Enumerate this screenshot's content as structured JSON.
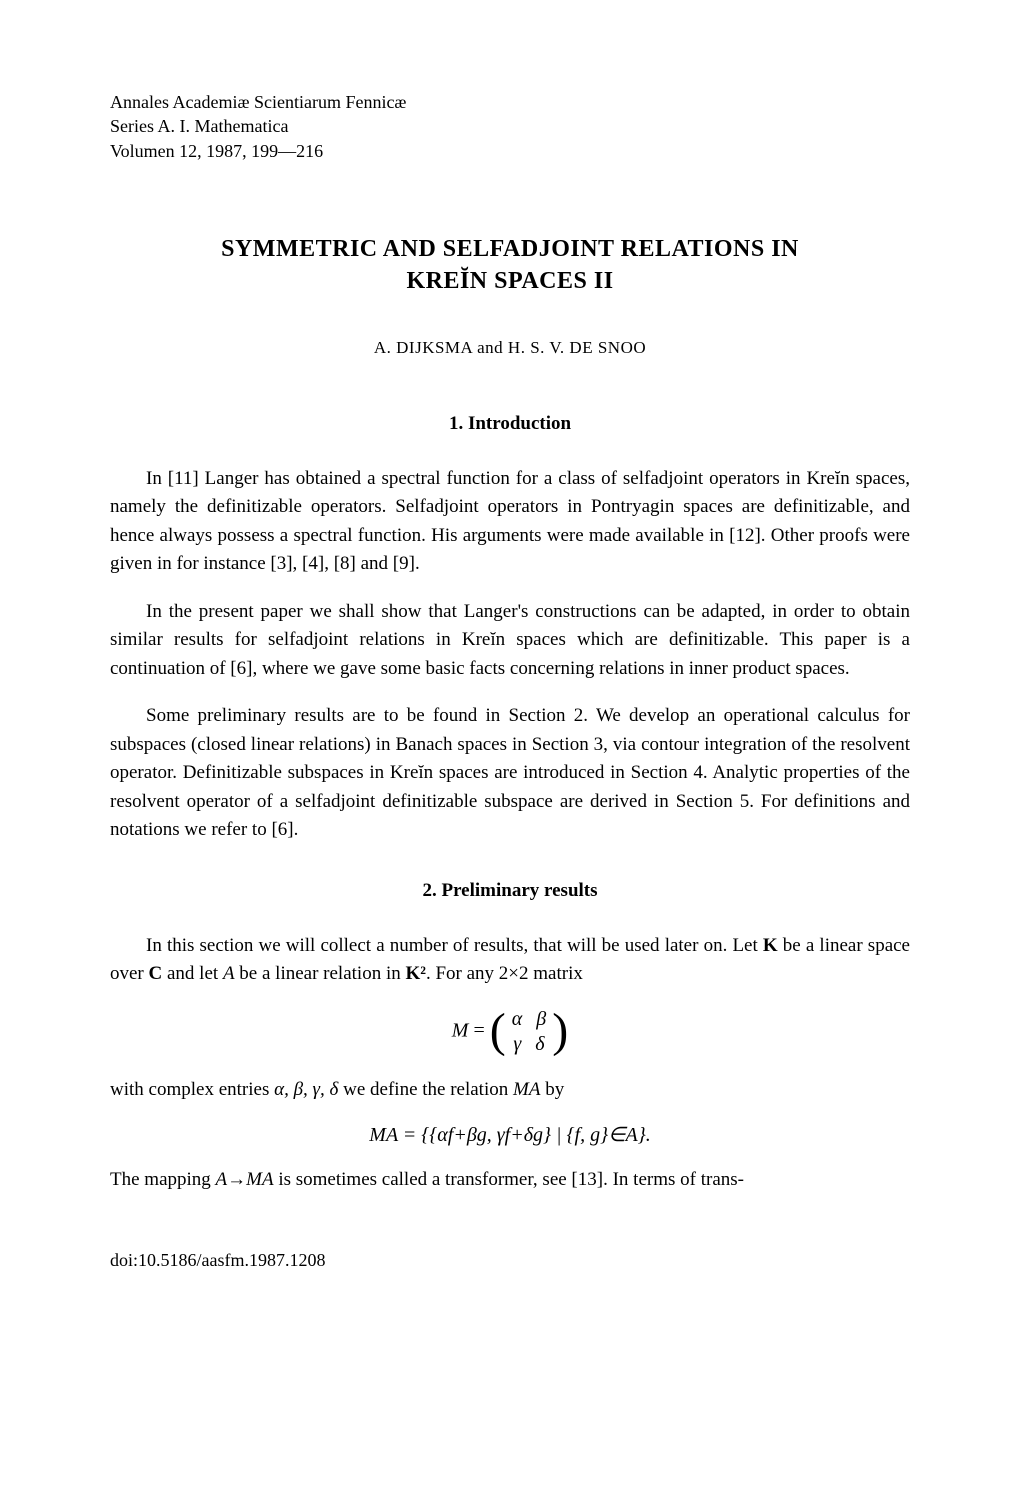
{
  "journal": {
    "line1": "Annales Academiæ Scientiarum Fennicæ",
    "line2": "Series A. I. Mathematica",
    "line3": "Volumen 12, 1987, 199—216"
  },
  "title": {
    "line1": "SYMMETRIC AND SELFADJOINT RELATIONS IN",
    "line2": "KREĬN SPACES II"
  },
  "authors": "A. DIJKSMA   and   H. S. V. DE SNOO",
  "sections": {
    "intro": {
      "heading": "1. Introduction",
      "p1": "In [11] Langer has obtained a spectral function for a class of selfadjoint operators in Kreĭn spaces, namely the definitizable operators. Selfadjoint operators in Pontryagin spaces are definitizable, and hence always possess a spectral function. His arguments were made available in [12]. Other proofs were given in for instance [3], [4], [8] and [9].",
      "p2": "In the present paper we shall show that Langer's constructions can be adapted, in order to obtain similar results for selfadjoint relations in Kreĭn spaces which are definitizable. This paper is a continuation of [6], where we gave some basic facts concerning relations in inner product spaces.",
      "p3": "Some preliminary results are to be found in Section 2. We develop an operational calculus for subspaces (closed linear relations) in Banach spaces in Section 3, via contour integration of the resolvent operator. Definitizable subspaces in Kreĭn spaces are introduced in Section 4. Analytic properties of the resolvent operator of a selfadjoint definitizable subspace are derived in Section 5. For definitions and notations we refer to [6]."
    },
    "prelim": {
      "heading": "2. Preliminary results",
      "p1_pre": "In this section we will collect a number of results, that will be used later on. Let ",
      "p1_K": "K",
      "p1_mid1": " be a linear space over ",
      "p1_C": "C",
      "p1_mid2": " and let ",
      "p1_A": "A",
      "p1_mid3": " be a linear relation in ",
      "p1_K2": "K²",
      "p1_mid4": ". For any 2×2 matrix",
      "eq1": {
        "lhs": "M",
        "equals": " = ",
        "m11": "α",
        "m12": "β",
        "m21": "γ",
        "m22": "δ"
      },
      "p2_pre": "with complex entries ",
      "p2_vars": "α, β, γ, δ",
      "p2_mid": " we define the relation ",
      "p2_MA": "MA",
      "p2_post": " by",
      "eq2": "MA = {{αf+βg, γf+δg} | {f, g}∈A}.",
      "p3_pre": "The mapping ",
      "p3_map": "A→MA",
      "p3_post": " is sometimes called a transformer, see [13]. In terms of trans-"
    }
  },
  "doi": "doi:10.5186/aasfm.1987.1208",
  "style": {
    "background_color": "#ffffff",
    "text_color": "#000000",
    "body_fontsize": 19,
    "title_fontsize": 24,
    "author_fontsize": 17,
    "heading_fontsize": 19,
    "journal_fontsize": 18,
    "font_family": "Times New Roman"
  }
}
